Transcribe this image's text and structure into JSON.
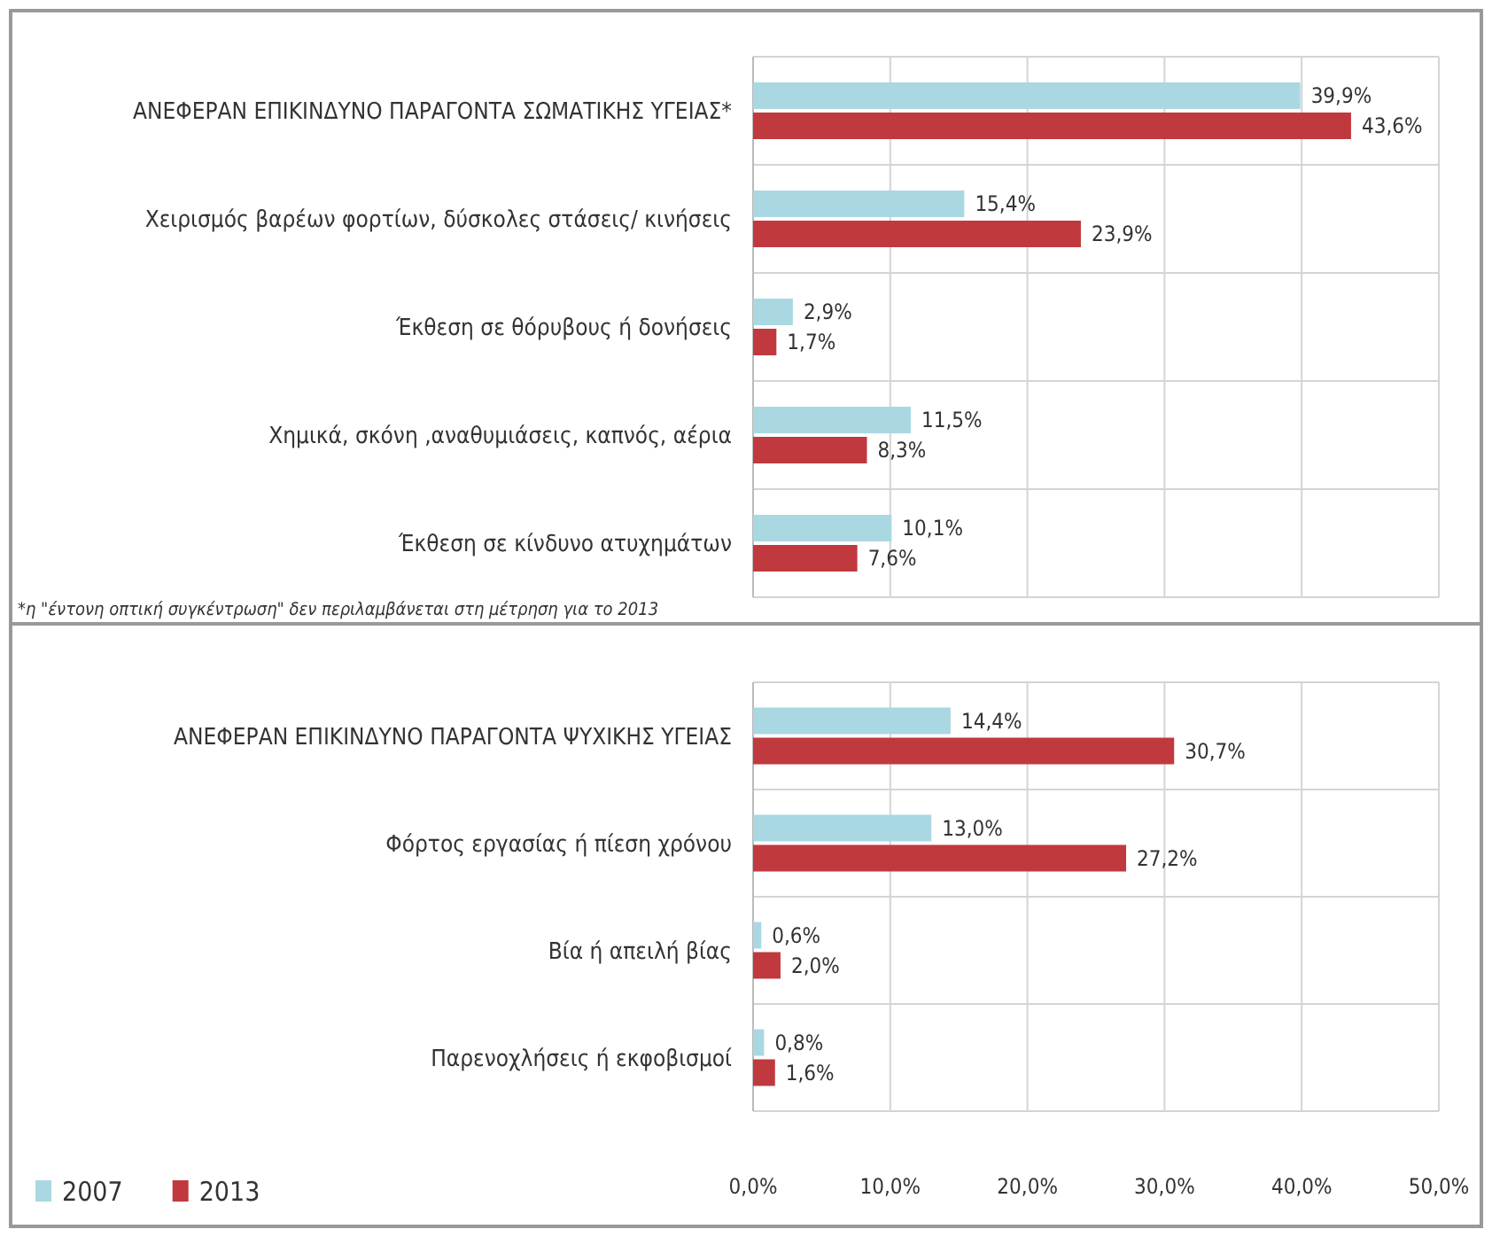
{
  "chart_data": [
    {
      "type": "bar",
      "orientation": "horizontal",
      "categories": [
        "ΑΝΕΦΕΡΑΝ ΕΠΙΚΙΝΔΥΝΟ  ΠΑΡΑΓΟΝΤΑ ΣΩΜΑΤΙΚΗΣ ΥΓΕΙΑΣ*",
        "Χειρισμός βαρέων φορτίων, δύσκολες στάσεις/ κινήσεις",
        "Έκθεση σε θόρυβους ή δονήσεις",
        "Χημικά, σκόνη ,αναθυμιάσεις,  καπνός, αέρια",
        "Έκθεση σε κίνδυνο ατυχημάτων"
      ],
      "series": [
        {
          "color": "#a9d8e3",
          "values": [
            39.9,
            15.4,
            2.9,
            11.5,
            10.1
          ],
          "value_labels": [
            "39,9%",
            "15,4%",
            "2,9%",
            "11,5%",
            "10,1%"
          ]
        },
        {
          "color": "#c0393f",
          "values": [
            43.6,
            23.9,
            1.7,
            8.3,
            7.6
          ],
          "value_labels": [
            "43,6%",
            "23,9%",
            "1,7%",
            "8,3%",
            "7,6%"
          ]
        }
      ],
      "xlim": [
        0,
        50
      ],
      "xticks": [
        {
          "value": 0,
          "label": null
        },
        {
          "value": 10,
          "label": null
        },
        {
          "value": 20,
          "label": null
        },
        {
          "value": 30,
          "label": null
        },
        {
          "value": 40,
          "label": null
        },
        {
          "value": 50,
          "label": null
        }
      ],
      "tick_labels": "y",
      "grid": "x",
      "annotations": [
        "*η \"έντονη οπτική συγκέντρωση\" δεν περιλαμβάνεται στη μέτρηση για το 2013"
      ]
    },
    {
      "type": "bar",
      "orientation": "horizontal",
      "categories": [
        "ΑΝΕΦΕΡΑΝ ΕΠΙΚΙΝΔΥΝΟ  ΠΑΡΑΓΟΝΤΑ ΨΥΧΙΚΗΣ ΥΓΕΙΑΣ",
        "Φόρτος εργασίας ή πίεση χρόνου",
        "Βία ή απειλή βίας",
        "Παρενοχλήσεις ή εκφοβισμοί"
      ],
      "series": [
        {
          "name": "2007",
          "color": "#a9d8e3",
          "values": [
            14.4,
            13.0,
            0.6,
            0.8
          ],
          "value_labels": [
            "14,4%",
            "13,0%",
            "0,6%",
            "0,8%"
          ]
        },
        {
          "name": "2013",
          "color": "#c0393f",
          "values": [
            30.7,
            27.2,
            2.0,
            1.6
          ],
          "value_labels": [
            "30,7%",
            "27,2%",
            "2,0%",
            "1,6%"
          ]
        }
      ],
      "xlim": [
        0,
        50
      ],
      "xticks": [
        {
          "value": 0,
          "label": "0,0%"
        },
        {
          "value": 10,
          "label": "10,0%"
        },
        {
          "value": 20,
          "label": "20,0%"
        },
        {
          "value": 30,
          "label": "30,0%"
        },
        {
          "value": 40,
          "label": "40,0%"
        },
        {
          "value": 50,
          "label": "50,0%"
        }
      ],
      "grid": "x",
      "legend": "bottom left"
    }
  ]
}
